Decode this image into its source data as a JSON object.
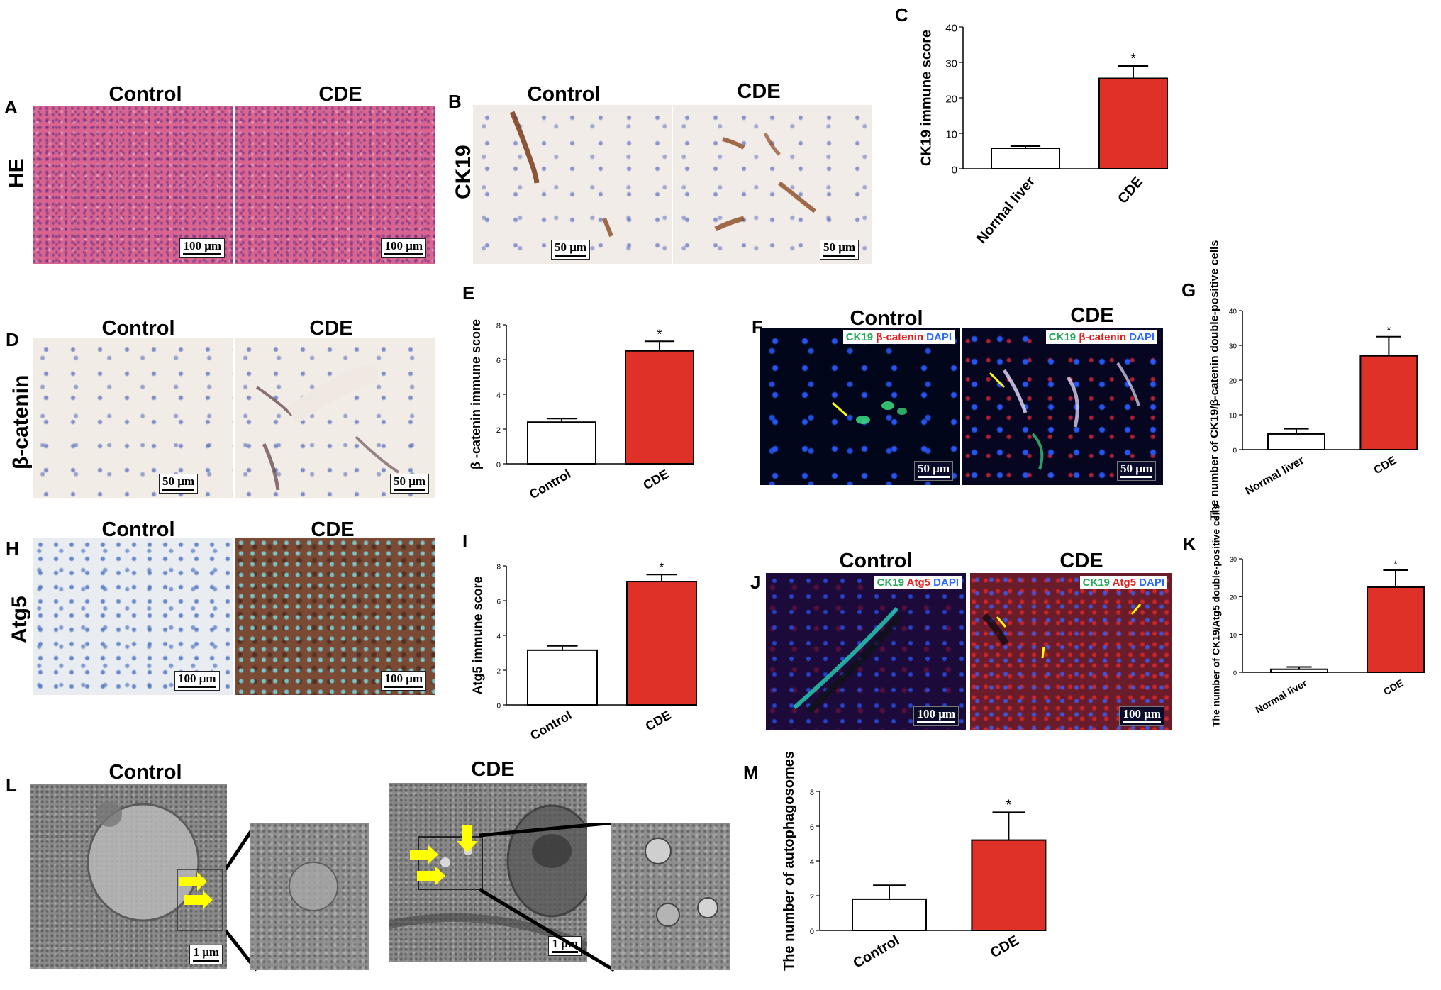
{
  "panels": {
    "A": {
      "label": "A",
      "row_label": "HE",
      "groups": [
        "Control",
        "CDE"
      ],
      "scale": [
        "100 μm",
        "100 μm"
      ]
    },
    "B": {
      "label": "B",
      "row_label": "CK19",
      "groups": [
        "Control",
        "CDE"
      ],
      "scale": [
        "50 μm",
        "50 μm"
      ]
    },
    "C": {
      "label": "C"
    },
    "D": {
      "label": "D",
      "row_label": "β-catenin",
      "groups": [
        "Control",
        "CDE"
      ],
      "scale": [
        "50 μm",
        "50 μm"
      ]
    },
    "E": {
      "label": "E"
    },
    "F": {
      "label": "F",
      "groups": [
        "Control",
        "CDE"
      ],
      "scale": [
        "50 μm",
        "50 μm"
      ],
      "legend": {
        "ch1": "CK19",
        "ch2": "β-catenin",
        "ch3": "DAPI"
      }
    },
    "G": {
      "label": "G"
    },
    "H": {
      "label": "H",
      "row_label": "Atg5",
      "groups": [
        "Control",
        "CDE"
      ],
      "scale": [
        "100 μm",
        "100 μm"
      ]
    },
    "I": {
      "label": "I"
    },
    "J": {
      "label": "J",
      "groups": [
        "Control",
        "CDE"
      ],
      "scale": [
        "100 μm",
        "100 μm"
      ],
      "legend": {
        "ch1": "CK19",
        "ch2": "Atg5",
        "ch3": "DAPI"
      }
    },
    "K": {
      "label": "K"
    },
    "L": {
      "label": "L",
      "groups": [
        "Control",
        "CDE"
      ],
      "scale": [
        "1 μm",
        "1 μm"
      ]
    },
    "M": {
      "label": "M"
    }
  },
  "colors": {
    "control_bar": "#ffffff",
    "cde_bar": "#e03128",
    "arrow": "#ffff00",
    "ck19": "#22dd66",
    "red_channel": "#ff2a2a",
    "dapi": "#3a7bff"
  },
  "chart_data": [
    {
      "panel": "C",
      "type": "bar",
      "categories": [
        "Normal liver",
        "CDE"
      ],
      "values": [
        5.8,
        25.5
      ],
      "errors": [
        0.6,
        3.5
      ],
      "ylabel": "CK19 immune score",
      "ylim": [
        0,
        40
      ],
      "yticks": [
        "0",
        "10",
        "20",
        "30",
        "40"
      ],
      "significance": [
        "",
        "*"
      ]
    },
    {
      "panel": "E",
      "type": "bar",
      "categories": [
        "Control",
        "CDE"
      ],
      "values": [
        2.4,
        6.5
      ],
      "errors": [
        0.2,
        0.55
      ],
      "ylabel": "β -catenin immune score",
      "ylim": [
        0,
        8
      ],
      "yticks": [
        "0",
        "2",
        "4",
        "6",
        "8"
      ],
      "significance": [
        "",
        "*"
      ]
    },
    {
      "panel": "G",
      "type": "bar",
      "categories": [
        "Normal liver",
        "CDE"
      ],
      "values": [
        4.5,
        27
      ],
      "errors": [
        1.5,
        5.5
      ],
      "ylabel": "The number of CK19/β-catenin double-positive cells",
      "ylim": [
        0,
        40
      ],
      "yticks": [
        "0",
        "10",
        "20",
        "30",
        "40"
      ],
      "significance": [
        "",
        "*"
      ]
    },
    {
      "panel": "I",
      "type": "bar",
      "categories": [
        "Control",
        "CDE"
      ],
      "values": [
        3.15,
        7.1
      ],
      "errors": [
        0.25,
        0.4
      ],
      "ylabel": "Atg5 immune score",
      "ylim": [
        0,
        8
      ],
      "yticks": [
        "0",
        "2",
        "4",
        "6",
        "8"
      ],
      "significance": [
        "",
        "*"
      ]
    },
    {
      "panel": "K",
      "type": "bar",
      "categories": [
        "Normal liver",
        "CDE"
      ],
      "values": [
        0.8,
        22.5
      ],
      "errors": [
        0.6,
        4.5
      ],
      "ylabel": "The number of CK19/Atg5 double-positive cells",
      "ylim": [
        0,
        30
      ],
      "yticks": [
        "0",
        "10",
        "20",
        "30"
      ],
      "significance": [
        "",
        "*"
      ]
    },
    {
      "panel": "M",
      "type": "bar",
      "categories": [
        "Control",
        "CDE"
      ],
      "values": [
        1.8,
        5.2
      ],
      "errors": [
        0.8,
        1.6
      ],
      "ylabel": "The number of autophagosomes",
      "ylim": [
        0,
        8
      ],
      "yticks": [
        "0",
        "2",
        "4",
        "6",
        "8"
      ],
      "significance": [
        "",
        "*"
      ]
    }
  ]
}
